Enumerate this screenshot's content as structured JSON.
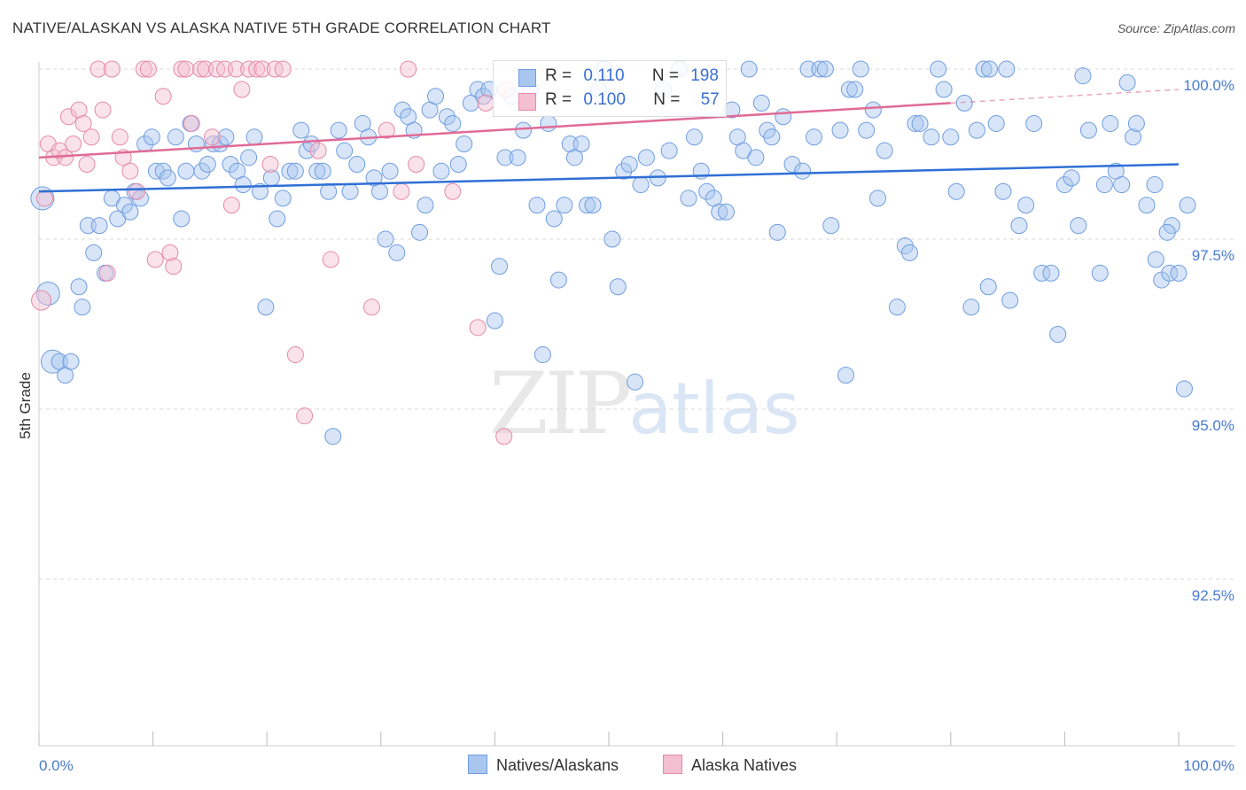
{
  "title": "NATIVE/ALASKAN VS ALASKA NATIVE 5TH GRADE CORRELATION CHART",
  "source": "Source: ZipAtlas.com",
  "watermark": {
    "zip": "ZIP",
    "atlas": "atlas"
  },
  "colors": {
    "blue": "#6f9de0",
    "blue_fill": "#a9c6ef",
    "pink": "#e58aa8",
    "pink_fill": "#f4bfd0",
    "blue_line": "#2f6fd6",
    "pink_line": "#e06b97",
    "axis_text": "#4a7bd0"
  },
  "legend_top": [
    {
      "r_label": "R =",
      "r_value": "0.110",
      "n_label": "N =",
      "n_value": "198"
    },
    {
      "r_label": "R =",
      "r_value": "0.100",
      "n_label": "N =",
      "n_value": "57"
    }
  ],
  "legend_bottom": [
    "Natives/Alaskans",
    "Alaska Natives"
  ],
  "chart_data": {
    "type": "scatter",
    "title": "NATIVE/ALASKAN VS ALASKA NATIVE 5TH GRADE CORRELATION CHART",
    "xlabel": "",
    "ylabel": "5th Grade",
    "xlim": [
      0,
      100
    ],
    "ylim": [
      90.0,
      100.25
    ],
    "x_tick_labels": [
      "0.0%",
      "100.0%"
    ],
    "y_ticks": [
      92.5,
      95.0,
      97.5,
      100.0
    ],
    "y_tick_labels": [
      "92.5%",
      "95.0%",
      "97.5%",
      "100.0%"
    ],
    "grid": "horizontal dashed",
    "legend_position": "top-center",
    "series": [
      {
        "name": "Natives/Alaskans",
        "trend": [
          [
            0,
            98.2
          ],
          [
            100,
            98.6
          ]
        ],
        "points": [
          [
            0.3,
            98.1
          ],
          [
            0.8,
            96.7
          ],
          [
            1.2,
            95.7
          ],
          [
            1.8,
            95.7
          ],
          [
            2.3,
            95.5
          ],
          [
            2.8,
            95.7
          ],
          [
            3.5,
            96.8
          ],
          [
            3.8,
            96.5
          ],
          [
            4.3,
            97.7
          ],
          [
            4.8,
            97.3
          ],
          [
            5.3,
            97.7
          ],
          [
            5.8,
            97.0
          ],
          [
            6.4,
            98.1
          ],
          [
            6.9,
            97.8
          ],
          [
            7.5,
            98.0
          ],
          [
            8.0,
            97.9
          ],
          [
            8.4,
            98.2
          ],
          [
            8.9,
            98.1
          ],
          [
            9.3,
            98.9
          ],
          [
            9.9,
            99.0
          ],
          [
            10.3,
            98.5
          ],
          [
            10.9,
            98.5
          ],
          [
            11.3,
            98.4
          ],
          [
            12.0,
            99.0
          ],
          [
            12.5,
            97.8
          ],
          [
            12.9,
            98.5
          ],
          [
            13.3,
            99.2
          ],
          [
            13.8,
            98.9
          ],
          [
            14.3,
            98.5
          ],
          [
            14.8,
            98.6
          ],
          [
            15.3,
            98.9
          ],
          [
            15.9,
            98.9
          ],
          [
            16.4,
            99.0
          ],
          [
            16.8,
            98.6
          ],
          [
            17.4,
            98.5
          ],
          [
            17.9,
            98.3
          ],
          [
            18.4,
            98.7
          ],
          [
            18.9,
            99.0
          ],
          [
            19.4,
            98.2
          ],
          [
            19.9,
            96.5
          ],
          [
            20.4,
            98.4
          ],
          [
            20.9,
            97.8
          ],
          [
            21.4,
            98.1
          ],
          [
            22.0,
            98.5
          ],
          [
            22.5,
            98.5
          ],
          [
            23.0,
            99.1
          ],
          [
            23.5,
            98.8
          ],
          [
            23.9,
            98.9
          ],
          [
            24.4,
            98.5
          ],
          [
            24.9,
            98.5
          ],
          [
            25.4,
            98.2
          ],
          [
            25.8,
            94.6
          ],
          [
            26.3,
            99.1
          ],
          [
            26.8,
            98.8
          ],
          [
            27.3,
            98.2
          ],
          [
            27.9,
            98.6
          ],
          [
            28.4,
            99.2
          ],
          [
            28.9,
            99.0
          ],
          [
            29.4,
            98.4
          ],
          [
            29.9,
            98.2
          ],
          [
            30.4,
            97.5
          ],
          [
            30.8,
            98.5
          ],
          [
            31.4,
            97.3
          ],
          [
            31.9,
            99.4
          ],
          [
            32.4,
            99.3
          ],
          [
            32.9,
            99.1
          ],
          [
            33.4,
            97.6
          ],
          [
            33.9,
            98.0
          ],
          [
            34.3,
            99.4
          ],
          [
            34.8,
            99.6
          ],
          [
            35.3,
            98.5
          ],
          [
            35.8,
            99.3
          ],
          [
            36.3,
            99.2
          ],
          [
            36.8,
            98.6
          ],
          [
            37.3,
            98.9
          ],
          [
            37.9,
            99.5
          ],
          [
            38.5,
            99.7
          ],
          [
            39.0,
            99.6
          ],
          [
            39.5,
            99.7
          ],
          [
            40.0,
            96.3
          ],
          [
            40.4,
            97.1
          ],
          [
            40.9,
            98.7
          ],
          [
            41.5,
            99.6
          ],
          [
            42.0,
            98.7
          ],
          [
            42.5,
            99.1
          ],
          [
            43.1,
            99.7
          ],
          [
            43.7,
            98.0
          ],
          [
            44.2,
            95.8
          ],
          [
            44.7,
            99.2
          ],
          [
            45.2,
            97.8
          ],
          [
            45.6,
            96.9
          ],
          [
            46.1,
            98.0
          ],
          [
            46.6,
            98.9
          ],
          [
            47.0,
            98.7
          ],
          [
            47.6,
            98.9
          ],
          [
            48.1,
            98.0
          ],
          [
            48.6,
            98.0
          ],
          [
            49.1,
            99.7
          ],
          [
            49.6,
            100.0
          ],
          [
            50.3,
            97.5
          ],
          [
            50.8,
            96.8
          ],
          [
            51.3,
            98.5
          ],
          [
            51.8,
            98.6
          ],
          [
            52.3,
            95.4
          ],
          [
            52.8,
            98.3
          ],
          [
            53.3,
            98.7
          ],
          [
            54.3,
            98.4
          ],
          [
            54.8,
            99.7
          ],
          [
            55.3,
            98.8
          ],
          [
            56.2,
            100.0
          ],
          [
            57.0,
            98.1
          ],
          [
            57.5,
            99.0
          ],
          [
            58.1,
            98.5
          ],
          [
            58.6,
            98.2
          ],
          [
            59.2,
            98.1
          ],
          [
            59.7,
            97.9
          ],
          [
            60.3,
            97.9
          ],
          [
            60.8,
            99.4
          ],
          [
            61.3,
            99.0
          ],
          [
            61.8,
            98.8
          ],
          [
            62.3,
            100.0
          ],
          [
            62.9,
            98.7
          ],
          [
            63.4,
            99.5
          ],
          [
            63.9,
            99.1
          ],
          [
            64.3,
            99.0
          ],
          [
            64.8,
            97.6
          ],
          [
            65.3,
            99.3
          ],
          [
            66.1,
            98.6
          ],
          [
            67.0,
            98.5
          ],
          [
            67.5,
            100.0
          ],
          [
            68.0,
            99.0
          ],
          [
            68.5,
            100.0
          ],
          [
            69.0,
            100.0
          ],
          [
            69.5,
            97.7
          ],
          [
            70.3,
            99.1
          ],
          [
            70.8,
            95.5
          ],
          [
            71.1,
            99.7
          ],
          [
            71.6,
            99.7
          ],
          [
            72.1,
            100.0
          ],
          [
            72.6,
            99.1
          ],
          [
            73.2,
            99.4
          ],
          [
            73.6,
            98.1
          ],
          [
            74.2,
            98.8
          ],
          [
            75.3,
            96.5
          ],
          [
            76.0,
            97.4
          ],
          [
            76.4,
            97.3
          ],
          [
            76.9,
            99.2
          ],
          [
            77.3,
            99.2
          ],
          [
            78.3,
            99.0
          ],
          [
            78.9,
            100.0
          ],
          [
            79.4,
            99.7
          ],
          [
            80.0,
            99.0
          ],
          [
            80.5,
            98.2
          ],
          [
            81.2,
            99.5
          ],
          [
            81.8,
            96.5
          ],
          [
            82.3,
            99.1
          ],
          [
            82.9,
            100.0
          ],
          [
            83.3,
            96.8
          ],
          [
            84.0,
            99.2
          ],
          [
            84.6,
            98.2
          ],
          [
            85.2,
            96.6
          ],
          [
            86.0,
            97.7
          ],
          [
            86.6,
            98.0
          ],
          [
            87.3,
            99.2
          ],
          [
            88.0,
            97.0
          ],
          [
            88.8,
            97.0
          ],
          [
            89.4,
            96.1
          ],
          [
            90.0,
            98.3
          ],
          [
            90.6,
            98.4
          ],
          [
            91.2,
            97.7
          ],
          [
            92.1,
            99.1
          ],
          [
            93.1,
            97.0
          ],
          [
            93.5,
            98.3
          ],
          [
            94.0,
            99.2
          ],
          [
            94.5,
            98.5
          ],
          [
            95.0,
            98.3
          ],
          [
            95.5,
            99.8
          ],
          [
            96.0,
            99.0
          ],
          [
            96.3,
            99.2
          ],
          [
            97.2,
            98.0
          ],
          [
            98.0,
            97.2
          ],
          [
            98.5,
            96.9
          ],
          [
            99.2,
            97.0
          ],
          [
            99.4,
            97.7
          ],
          [
            100.0,
            97.0
          ],
          [
            100.5,
            95.3
          ],
          [
            101.1,
            98.0
          ],
          [
            97.9,
            98.3
          ],
          [
            99.0,
            97.6
          ],
          [
            91.6,
            99.9
          ],
          [
            84.9,
            100.0
          ],
          [
            83.4,
            100.0
          ]
        ]
      },
      {
        "name": "Alaska Natives",
        "trend": [
          [
            0,
            98.7
          ],
          [
            80,
            99.5
          ]
        ],
        "points": [
          [
            0.2,
            96.6
          ],
          [
            0.5,
            98.1
          ],
          [
            0.8,
            98.9
          ],
          [
            1.3,
            98.7
          ],
          [
            1.8,
            98.8
          ],
          [
            2.3,
            98.7
          ],
          [
            2.6,
            99.3
          ],
          [
            3.0,
            98.9
          ],
          [
            3.5,
            99.4
          ],
          [
            3.9,
            99.2
          ],
          [
            4.2,
            98.6
          ],
          [
            4.6,
            99.0
          ],
          [
            5.2,
            100.0
          ],
          [
            5.6,
            99.4
          ],
          [
            6.0,
            97.0
          ],
          [
            6.4,
            100.0
          ],
          [
            7.1,
            99.0
          ],
          [
            7.4,
            98.7
          ],
          [
            8.0,
            98.5
          ],
          [
            8.6,
            98.2
          ],
          [
            9.2,
            100.0
          ],
          [
            9.6,
            100.0
          ],
          [
            10.2,
            97.2
          ],
          [
            10.9,
            99.6
          ],
          [
            11.5,
            97.3
          ],
          [
            11.8,
            97.1
          ],
          [
            12.5,
            100.0
          ],
          [
            12.9,
            100.0
          ],
          [
            13.4,
            99.2
          ],
          [
            14.2,
            100.0
          ],
          [
            14.6,
            100.0
          ],
          [
            15.2,
            99.0
          ],
          [
            15.6,
            100.0
          ],
          [
            16.3,
            100.0
          ],
          [
            16.9,
            98.0
          ],
          [
            17.3,
            100.0
          ],
          [
            17.8,
            99.7
          ],
          [
            18.4,
            100.0
          ],
          [
            19.1,
            100.0
          ],
          [
            19.6,
            100.0
          ],
          [
            20.3,
            98.6
          ],
          [
            20.7,
            100.0
          ],
          [
            21.4,
            100.0
          ],
          [
            22.5,
            95.8
          ],
          [
            23.3,
            94.9
          ],
          [
            24.5,
            98.8
          ],
          [
            25.6,
            97.2
          ],
          [
            29.2,
            96.5
          ],
          [
            30.5,
            99.1
          ],
          [
            31.8,
            98.2
          ],
          [
            32.4,
            100.0
          ],
          [
            33.1,
            98.6
          ],
          [
            36.3,
            98.2
          ],
          [
            38.5,
            96.2
          ],
          [
            39.2,
            99.5
          ],
          [
            41.0,
            99.7
          ],
          [
            40.8,
            94.6
          ]
        ]
      }
    ]
  }
}
